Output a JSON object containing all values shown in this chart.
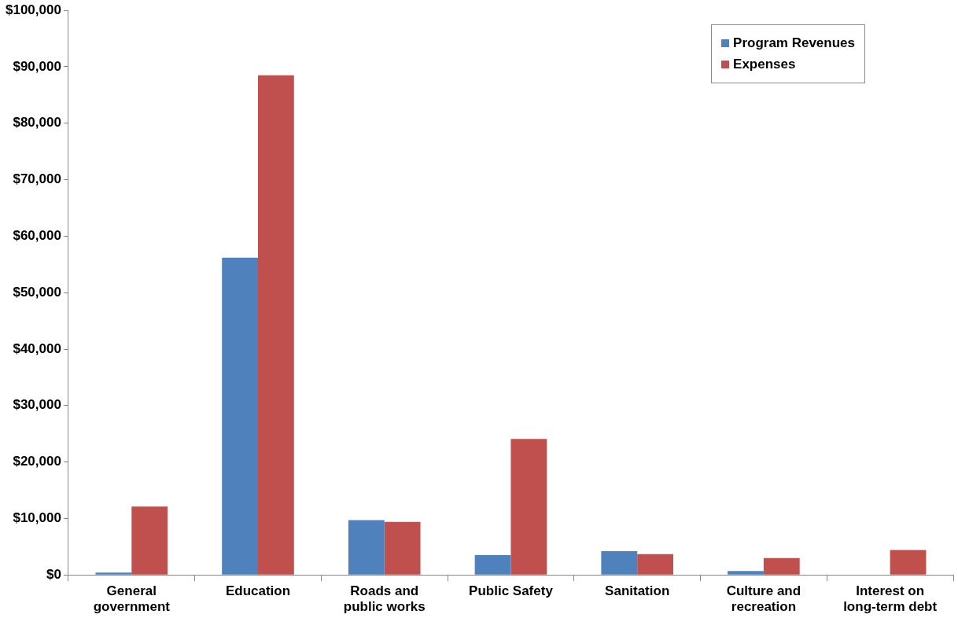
{
  "chart_data": {
    "type": "bar",
    "categories": [
      "General government",
      "Education",
      "Roads and public works",
      "Public Safety",
      "Sanitation",
      "Culture and recreation",
      "Interest on long-term debt"
    ],
    "series": [
      {
        "name": "Program Revenues",
        "color": "#4f81bd",
        "values": [
          400,
          56200,
          9700,
          3500,
          4200,
          700,
          0
        ]
      },
      {
        "name": "Expenses",
        "color": "#c0504d",
        "values": [
          12100,
          88500,
          9400,
          24100,
          3700,
          3000,
          4400
        ]
      }
    ],
    "ylim": [
      0,
      100000
    ],
    "yticks": [
      {
        "value": 0,
        "label": "$0"
      },
      {
        "value": 10000,
        "label": "$10,000"
      },
      {
        "value": 20000,
        "label": "$20,000"
      },
      {
        "value": 30000,
        "label": "$30,000"
      },
      {
        "value": 40000,
        "label": "$40,000"
      },
      {
        "value": 50000,
        "label": "$50,000"
      },
      {
        "value": 60000,
        "label": "$60,000"
      },
      {
        "value": 70000,
        "label": "$70,000"
      },
      {
        "value": 80000,
        "label": "$80,000"
      },
      {
        "value": 90000,
        "label": "$90,000"
      },
      {
        "value": 100000,
        "label": "$100,000"
      }
    ],
    "grid": false,
    "legend": "top right"
  }
}
